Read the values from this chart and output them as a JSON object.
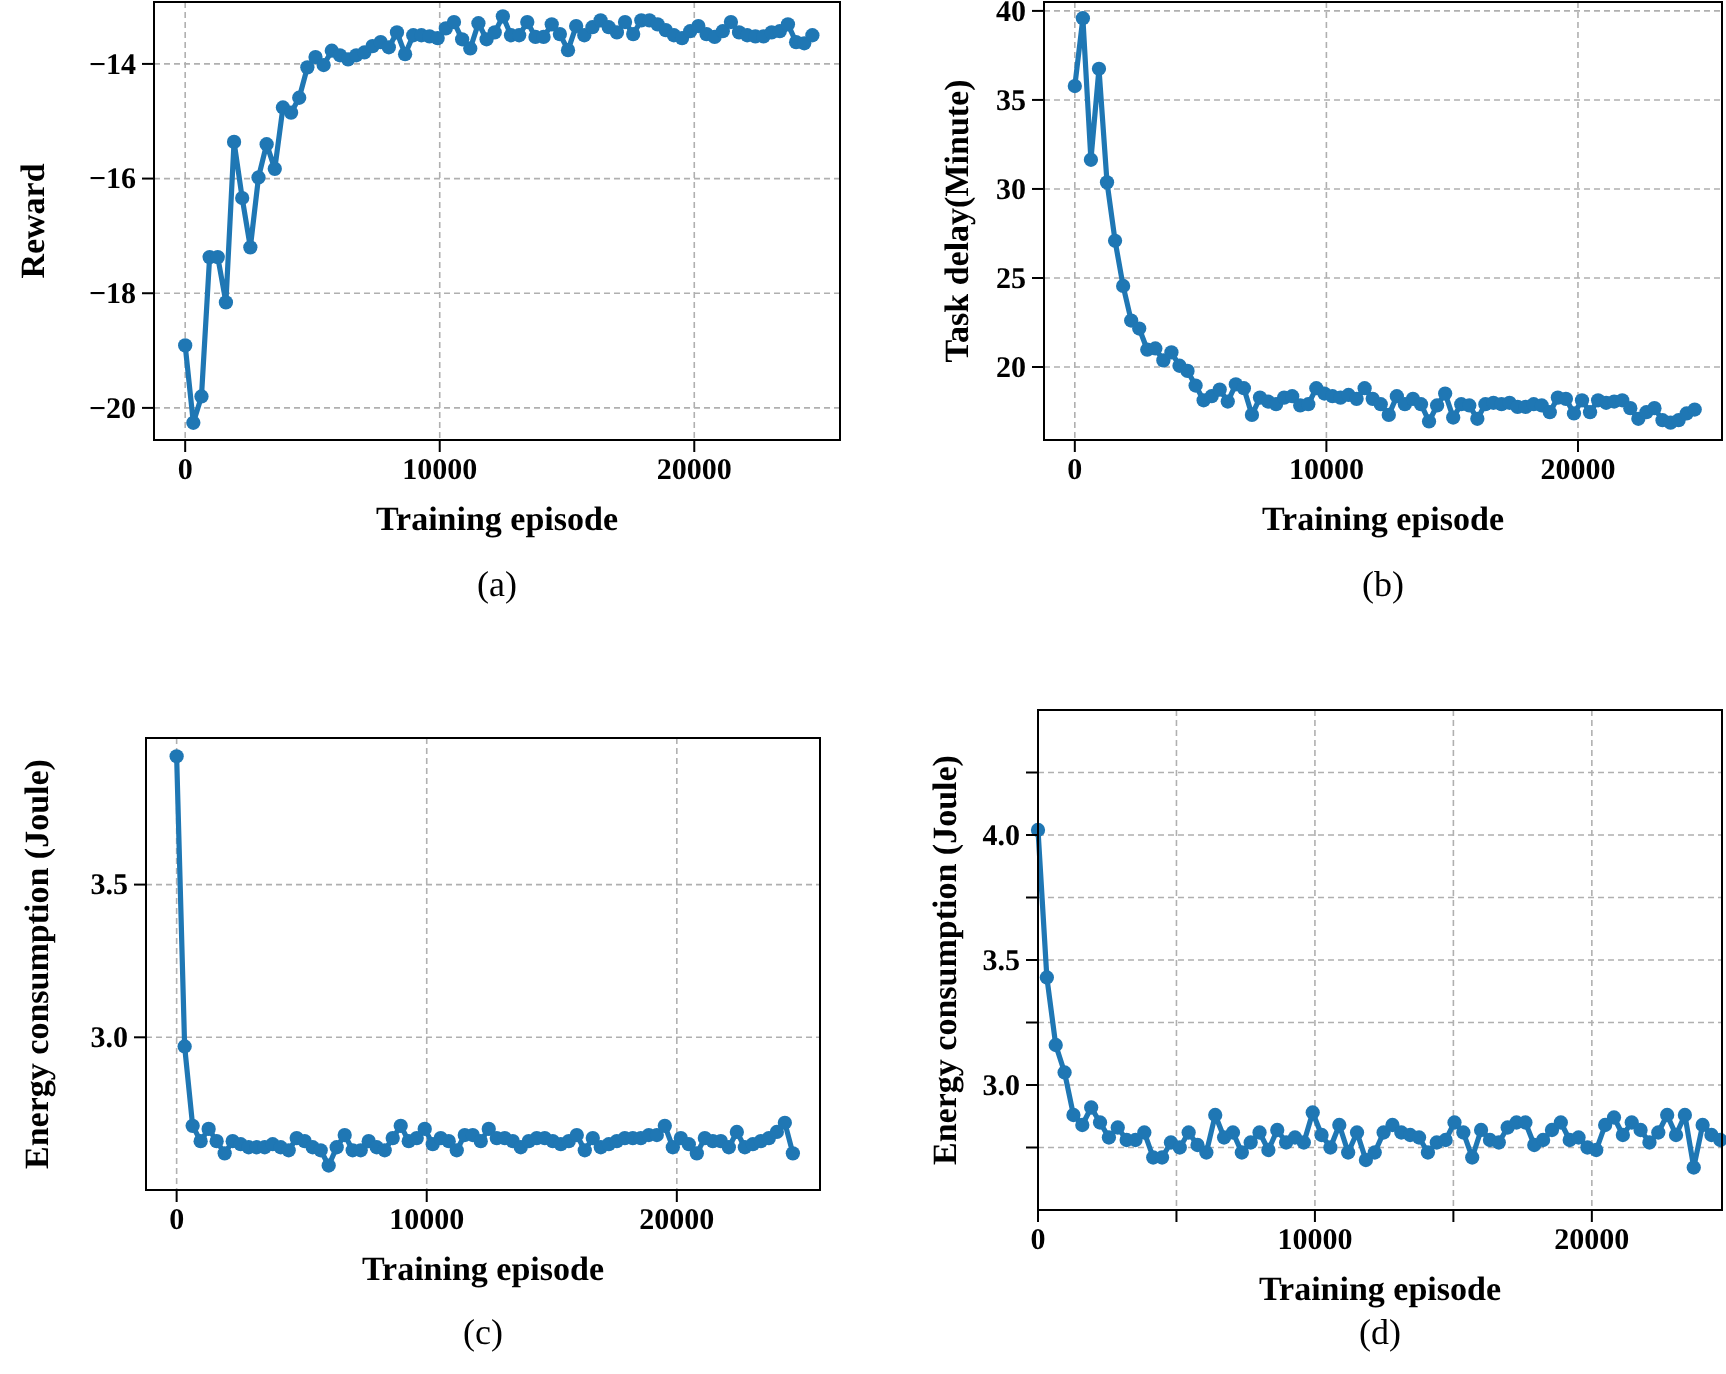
{
  "chart_data": [
    {
      "type": "line",
      "xlabel": "Training episode",
      "ylabel": "Reward",
      "annotations": [
        "(a)"
      ],
      "color": "#1f77b4",
      "marker": "circle",
      "grid": true,
      "xlim": [
        -1225,
        25725
      ],
      "ylim": [
        -20.56,
        -12.92
      ],
      "xticks": [
        0,
        10000,
        20000
      ],
      "yticks": [
        {
          "value": -20,
          "label": "−20"
        },
        {
          "value": -18,
          "label": "−18"
        },
        {
          "value": -16,
          "label": "−16"
        },
        {
          "value": -14,
          "label": "−14"
        }
      ],
      "x": [
        0,
        320,
        640,
        960,
        1280,
        1600,
        1920,
        2240,
        2560,
        2880,
        3200,
        3520,
        3840,
        4160,
        4480,
        4800,
        5120,
        5440,
        5760,
        6080,
        6400,
        6720,
        7040,
        7360,
        7680,
        8000,
        8320,
        8640,
        8960,
        9280,
        9600,
        9920,
        10240,
        10560,
        10880,
        11200,
        11520,
        11840,
        12160,
        12480,
        12800,
        13120,
        13440,
        13760,
        14080,
        14400,
        14720,
        15040,
        15360,
        15680,
        16000,
        16320,
        16640,
        16960,
        17280,
        17600,
        17920,
        18240,
        18560,
        18880,
        19200,
        19520,
        19840,
        20160,
        20480,
        20800,
        21120,
        21440,
        21760,
        22080,
        22400,
        22720,
        23040,
        23360,
        23680,
        24000,
        24320,
        24640
      ],
      "values": [
        -18.91,
        -20.26,
        -19.8,
        -17.37,
        -17.37,
        -18.16,
        -15.36,
        -16.34,
        -17.2,
        -15.98,
        -15.4,
        -15.83,
        -14.76,
        -14.85,
        -14.59,
        -14.06,
        -13.88,
        -14.02,
        -13.77,
        -13.85,
        -13.92,
        -13.85,
        -13.8,
        -13.69,
        -13.62,
        -13.71,
        -13.45,
        -13.83,
        -13.5,
        -13.5,
        -13.52,
        -13.55,
        -13.38,
        -13.27,
        -13.57,
        -13.73,
        -13.29,
        -13.57,
        -13.45,
        -13.17,
        -13.5,
        -13.5,
        -13.27,
        -13.53,
        -13.53,
        -13.31,
        -13.48,
        -13.76,
        -13.34,
        -13.5,
        -13.36,
        -13.24,
        -13.36,
        -13.45,
        -13.27,
        -13.48,
        -13.24,
        -13.24,
        -13.31,
        -13.41,
        -13.5,
        -13.55,
        -13.43,
        -13.34,
        -13.48,
        -13.53,
        -13.43,
        -13.27,
        -13.45,
        -13.5,
        -13.52,
        -13.52,
        -13.45,
        -13.43,
        -13.31,
        -13.62,
        -13.64,
        -13.5
      ]
    },
    {
      "type": "line",
      "xlabel": "Training episode",
      "ylabel": "Task delay(Minute)",
      "annotations": [
        "(b)"
      ],
      "color": "#1f77b4",
      "marker": "circle",
      "grid": true,
      "xlim": [
        -1225,
        25725
      ],
      "ylim": [
        15.9,
        40.5
      ],
      "xticks": [
        0,
        10000,
        20000
      ],
      "yticks": [
        20,
        25,
        30,
        35,
        40
      ],
      "x": [
        0,
        320,
        640,
        960,
        1280,
        1600,
        1920,
        2240,
        2560,
        2880,
        3200,
        3520,
        3840,
        4160,
        4480,
        4800,
        5120,
        5440,
        5760,
        6080,
        6400,
        6720,
        7040,
        7360,
        7680,
        8000,
        8320,
        8640,
        8960,
        9280,
        9600,
        9920,
        10240,
        10560,
        10880,
        11200,
        11520,
        11840,
        12160,
        12480,
        12800,
        13120,
        13440,
        13760,
        14080,
        14400,
        14720,
        15040,
        15360,
        15680,
        16000,
        16320,
        16640,
        16960,
        17280,
        17600,
        17920,
        18240,
        18560,
        18880,
        19200,
        19520,
        19840,
        20160,
        20480,
        20800,
        21120,
        21440,
        21760,
        22080,
        22400,
        22720,
        23040,
        23360,
        23680,
        24000,
        24320,
        24640
      ],
      "values": [
        35.78,
        39.59,
        31.64,
        36.75,
        30.37,
        27.09,
        24.55,
        22.61,
        22.16,
        20.97,
        21.04,
        20.37,
        20.82,
        20.07,
        19.78,
        18.96,
        18.13,
        18.36,
        18.73,
        18.06,
        19.03,
        18.81,
        17.31,
        18.28,
        18.06,
        17.91,
        18.28,
        18.36,
        17.84,
        17.91,
        18.81,
        18.51,
        18.36,
        18.28,
        18.43,
        18.21,
        18.81,
        18.21,
        17.91,
        17.31,
        18.36,
        17.91,
        18.21,
        17.91,
        16.94,
        17.84,
        18.51,
        17.16,
        17.91,
        17.84,
        17.09,
        17.91,
        17.99,
        17.91,
        17.99,
        17.76,
        17.76,
        17.91,
        17.84,
        17.46,
        18.28,
        18.21,
        17.39,
        18.13,
        17.46,
        18.13,
        17.99,
        18.06,
        18.13,
        17.69,
        17.09,
        17.46,
        17.69,
        17.01,
        16.87,
        17.01,
        17.39,
        17.61
      ]
    },
    {
      "type": "line",
      "xlabel": "Training episode",
      "ylabel": "Energy consumption (Joule)",
      "annotations": [
        "(c)"
      ],
      "color": "#1f77b4",
      "marker": "circle",
      "grid": true,
      "xlim": [
        -1225,
        25725
      ],
      "ylim": [
        2.5,
        3.98
      ],
      "xticks": [
        0,
        10000,
        20000
      ],
      "yticks": [
        {
          "value": 3.0,
          "label": "3.0"
        },
        {
          "value": 3.5,
          "label": "3.5"
        }
      ],
      "x": [
        0,
        320,
        640,
        960,
        1280,
        1600,
        1920,
        2240,
        2560,
        2880,
        3200,
        3520,
        3840,
        4160,
        4480,
        4800,
        5120,
        5440,
        5760,
        6080,
        6400,
        6720,
        7040,
        7360,
        7680,
        8000,
        8320,
        8640,
        8960,
        9280,
        9600,
        9920,
        10240,
        10560,
        10880,
        11200,
        11520,
        11840,
        12160,
        12480,
        12800,
        13120,
        13440,
        13760,
        14080,
        14400,
        14720,
        15040,
        15360,
        15680,
        16000,
        16320,
        16640,
        16960,
        17280,
        17600,
        17920,
        18240,
        18560,
        18880,
        19200,
        19520,
        19840,
        20160,
        20480,
        20800,
        21120,
        21440,
        21760,
        22080,
        22400,
        22720,
        23040,
        23360,
        23680,
        24000,
        24320,
        24640
      ],
      "values": [
        3.92,
        2.97,
        2.71,
        2.66,
        2.7,
        2.66,
        2.62,
        2.66,
        2.65,
        2.64,
        2.64,
        2.64,
        2.65,
        2.64,
        2.63,
        2.67,
        2.66,
        2.64,
        2.63,
        2.58,
        2.64,
        2.68,
        2.63,
        2.63,
        2.66,
        2.64,
        2.63,
        2.67,
        2.71,
        2.66,
        2.67,
        2.7,
        2.65,
        2.67,
        2.66,
        2.63,
        2.68,
        2.68,
        2.66,
        2.7,
        2.67,
        2.67,
        2.66,
        2.64,
        2.66,
        2.67,
        2.67,
        2.66,
        2.65,
        2.66,
        2.68,
        2.63,
        2.67,
        2.64,
        2.65,
        2.66,
        2.67,
        2.67,
        2.67,
        2.68,
        2.68,
        2.71,
        2.64,
        2.67,
        2.65,
        2.62,
        2.67,
        2.66,
        2.66,
        2.64,
        2.69,
        2.64,
        2.65,
        2.66,
        2.67,
        2.69,
        2.72,
        2.62
      ]
    },
    {
      "type": "line",
      "xlabel": "Training episode",
      "ylabel": "Energy consumption (Joule)",
      "annotations": [
        "(d)"
      ],
      "color": "#1f77b4",
      "marker": "circle",
      "grid": true,
      "xlim": [
        0,
        24700
      ],
      "ylim": [
        2.5,
        4.5
      ],
      "xticks": [
        0,
        {
          "value": 5000,
          "label": null
        },
        10000,
        {
          "value": 15000,
          "label": null
        },
        20000
      ],
      "yticks": [
        {
          "value": 2.75,
          "label": null
        },
        {
          "value": 3.0,
          "label": "3.0"
        },
        {
          "value": 3.25,
          "label": null
        },
        {
          "value": 3.5,
          "label": "3.5"
        },
        {
          "value": 3.75,
          "label": null
        },
        {
          "value": 4.0,
          "label": "4.0"
        },
        {
          "value": 4.25,
          "label": null
        }
      ],
      "x": [
        0,
        320,
        640,
        960,
        1280,
        1600,
        1920,
        2240,
        2560,
        2880,
        3200,
        3520,
        3840,
        4160,
        4480,
        4800,
        5120,
        5440,
        5760,
        6080,
        6400,
        6720,
        7040,
        7360,
        7680,
        8000,
        8320,
        8640,
        8960,
        9280,
        9600,
        9920,
        10240,
        10560,
        10880,
        11200,
        11520,
        11840,
        12160,
        12480,
        12800,
        13120,
        13440,
        13760,
        14080,
        14400,
        14720,
        15040,
        15360,
        15680,
        16000,
        16320,
        16640,
        16960,
        17280,
        17600,
        17920,
        18240,
        18560,
        18880,
        19200,
        19520,
        19840,
        20160,
        20480,
        20800,
        21120,
        21440,
        21760,
        22080,
        22400,
        22720,
        23040,
        23360,
        23680,
        24000,
        24320,
        24640
      ],
      "values": [
        4.02,
        3.43,
        3.16,
        3.05,
        2.88,
        2.84,
        2.91,
        2.85,
        2.79,
        2.83,
        2.78,
        2.78,
        2.81,
        2.71,
        2.71,
        2.77,
        2.75,
        2.81,
        2.76,
        2.73,
        2.88,
        2.79,
        2.81,
        2.73,
        2.77,
        2.81,
        2.74,
        2.82,
        2.77,
        2.79,
        2.77,
        2.89,
        2.8,
        2.75,
        2.84,
        2.73,
        2.81,
        2.7,
        2.73,
        2.81,
        2.84,
        2.81,
        2.8,
        2.79,
        2.73,
        2.77,
        2.78,
        2.85,
        2.81,
        2.71,
        2.82,
        2.78,
        2.77,
        2.83,
        2.85,
        2.85,
        2.76,
        2.78,
        2.82,
        2.85,
        2.78,
        2.79,
        2.75,
        2.74,
        2.84,
        2.87,
        2.8,
        2.85,
        2.82,
        2.77,
        2.81,
        2.88,
        2.8,
        2.88,
        2.67,
        2.84,
        2.8,
        2.78
      ]
    }
  ]
}
